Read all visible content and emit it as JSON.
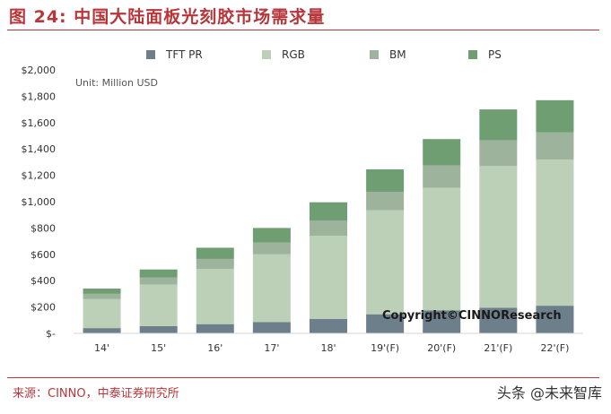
{
  "header": {
    "title": "图 24:  中国大陆面板光刻胶市场需求量"
  },
  "footer": {
    "source": "来源：CINNO，中泰证券研究所",
    "watermark": "头条 @未来智库"
  },
  "colors": {
    "title": "#b8353a"
  },
  "chart_data": {
    "type": "bar",
    "stacked": true,
    "unit_note": "Unit: Million USD",
    "overlay_text": "Copyright©CINNOResearch",
    "categories": [
      "14'",
      "15'",
      "16'",
      "17'",
      "18'",
      "19'(F)",
      "20'(F)",
      "21'(F)",
      "22'(F)"
    ],
    "series": [
      {
        "name": "TFT PR",
        "color": "#6d7f8b",
        "values": [
          40,
          55,
          70,
          85,
          110,
          145,
          175,
          195,
          210
        ]
      },
      {
        "name": "RGB",
        "color": "#bcd0b8",
        "values": [
          220,
          315,
          420,
          515,
          630,
          790,
          930,
          1075,
          1110
        ]
      },
      {
        "name": "BM",
        "color": "#9db39c",
        "values": [
          40,
          55,
          75,
          90,
          115,
          140,
          170,
          195,
          205
        ]
      },
      {
        "name": "PS",
        "color": "#6f9e72",
        "values": [
          40,
          60,
          85,
          110,
          140,
          170,
          200,
          235,
          245
        ]
      }
    ],
    "y_tick_labels": [
      "$-",
      "$200",
      "$400",
      "$600",
      "$800",
      "$1,000",
      "$1,200",
      "$1,400",
      "$1,600",
      "$1,800",
      "$2,000"
    ],
    "ylim": [
      0,
      2000
    ],
    "ystep": 200,
    "grid": false,
    "legend_position": "top"
  }
}
